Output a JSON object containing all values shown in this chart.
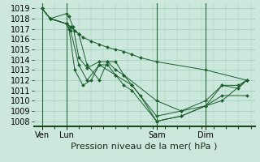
{
  "background_color": "#cce8dc",
  "grid_color": "#99ccbb",
  "line_color": "#1a5c2a",
  "marker_color": "#1a5c2a",
  "xlabel": "Pression niveau de la mer( hPa )",
  "ylim": [
    1007.5,
    1019.5
  ],
  "yticks": [
    1008,
    1009,
    1010,
    1011,
    1012,
    1013,
    1014,
    1015,
    1016,
    1017,
    1018,
    1019
  ],
  "xtick_labels": [
    "Ven",
    "Lun",
    "Sam",
    "Dim"
  ],
  "xtick_positions": [
    0,
    3,
    14,
    20
  ],
  "xlim": [
    -1,
    26
  ],
  "vlines": [
    0,
    3,
    14,
    20
  ],
  "lines": [
    {
      "x": [
        0,
        1,
        3,
        3.5,
        4,
        4.5,
        5,
        6,
        7,
        8,
        9,
        10,
        11,
        12,
        14,
        20,
        25
      ],
      "y": [
        1019,
        1018,
        1017.5,
        1017.2,
        1016.8,
        1016.5,
        1016.2,
        1015.8,
        1015.5,
        1015.2,
        1015.0,
        1014.8,
        1014.5,
        1014.2,
        1013.8,
        1013.0,
        1012.0
      ]
    },
    {
      "x": [
        0,
        1,
        3,
        3.5,
        4.5,
        5.5,
        7,
        8,
        9,
        10,
        11,
        12,
        14,
        17,
        20,
        22,
        25
      ],
      "y": [
        1019,
        1018,
        1017.5,
        1017.2,
        1016.5,
        1013.5,
        1012.0,
        1013.8,
        1013.8,
        1012.5,
        1011.5,
        1010.5,
        1008.0,
        1008.5,
        1009.5,
        1010.0,
        1012.0
      ]
    },
    {
      "x": [
        0,
        1,
        3,
        3.3,
        3.8,
        4.5,
        5.5,
        7,
        8,
        9,
        10,
        14,
        17,
        20,
        22,
        24,
        25
      ],
      "y": [
        1019,
        1018,
        1018.5,
        1018.2,
        1017.2,
        1014.2,
        1013.2,
        1013.8,
        1013.8,
        1013.0,
        1012.5,
        1010.0,
        1009.0,
        1009.5,
        1011.5,
        1011.5,
        1012.0
      ]
    },
    {
      "x": [
        0,
        1,
        3,
        3.3,
        4,
        5,
        6,
        7,
        8,
        9,
        10,
        11,
        14,
        17,
        20,
        22,
        25
      ],
      "y": [
        1019,
        1018,
        1017.5,
        1017.0,
        1013.0,
        1011.5,
        1012.0,
        1013.5,
        1013.5,
        1012.5,
        1011.5,
        1011.0,
        1008.0,
        1008.5,
        1009.5,
        1010.5,
        1010.5
      ]
    },
    {
      "x": [
        0,
        1,
        3,
        3.5,
        4.5,
        5.5,
        7,
        9,
        11,
        14,
        17,
        20,
        22,
        24,
        25
      ],
      "y": [
        1019,
        1018,
        1017.5,
        1016.8,
        1013.5,
        1012.0,
        1013.5,
        1012.5,
        1011.5,
        1008.5,
        1009.0,
        1010.0,
        1011.5,
        1011.2,
        1012.0
      ]
    }
  ],
  "font_size": 7.0,
  "xlabel_fontsize": 8.0
}
